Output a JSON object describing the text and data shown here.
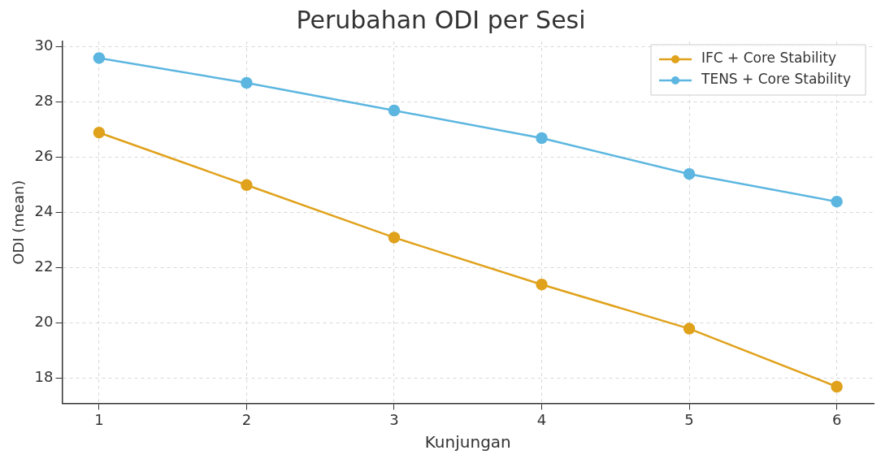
{
  "chart_data": {
    "type": "line",
    "title": "Perubahan ODI per Sesi",
    "xlabel": "Kunjungan",
    "ylabel": "ODI (mean)",
    "x": [
      1,
      2,
      3,
      4,
      5,
      6
    ],
    "series": [
      {
        "name": "IFC + Core Stability",
        "color": "#e0a21c",
        "values": [
          26.9,
          25.0,
          23.1,
          21.4,
          19.8,
          17.7
        ]
      },
      {
        "name": "TENS + Core Stability",
        "color": "#5cb6e0",
        "values": [
          29.6,
          28.7,
          27.7,
          26.7,
          25.4,
          24.4
        ]
      }
    ],
    "xlim": [
      0.75,
      6.25
    ],
    "xticks": [
      1,
      2,
      3,
      4,
      5,
      6
    ],
    "ylim": [
      17.1,
      30.2
    ],
    "yticks": [
      18,
      20,
      22,
      24,
      26,
      28,
      30
    ],
    "grid": true,
    "legend": "top right",
    "marker": "circle",
    "line_style": "solid"
  }
}
